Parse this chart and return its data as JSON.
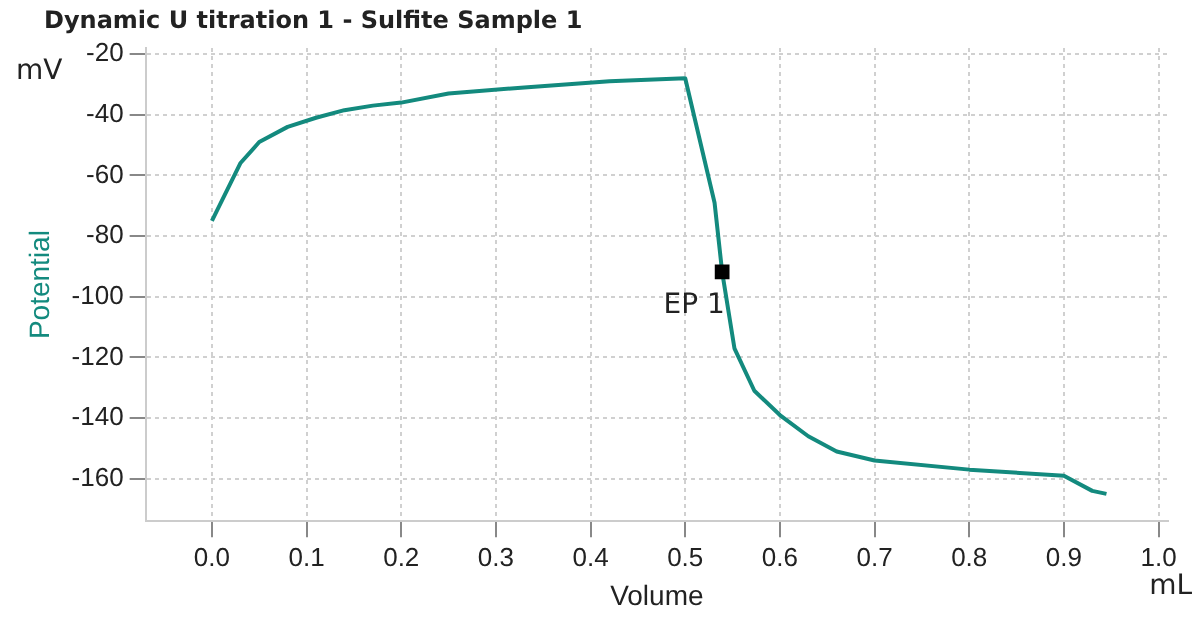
{
  "chart_data": {
    "type": "line",
    "title": "Dynamic U titration 1 - Sulfite Sample  1",
    "xlabel": "Volume",
    "ylabel": "Potential",
    "annotations": [
      "mV",
      "mL",
      {
        "text": "EP 1",
        "x": 0.539,
        "y": -91.8
      }
    ],
    "xlim": [
      -0.07,
      1.01
    ],
    "ylim": [
      -174,
      -18
    ],
    "xticks": [
      {
        "value": 0,
        "label": "0.0"
      },
      0.1,
      0.2,
      0.3,
      0.4,
      0.5,
      0.6,
      0.7,
      0.8,
      0.9,
      {
        "value": 1,
        "label": "1.0"
      }
    ],
    "yticks": [
      -20,
      -40,
      -60,
      -80,
      -100,
      -120,
      -140,
      -160
    ],
    "grid": true,
    "marker": "none",
    "series": [
      {
        "color": "#138a7e",
        "x": [
          0,
          0.03,
          0.05,
          0.08,
          0.11,
          0.14,
          0.17,
          0.2,
          0.25,
          0.33,
          0.42,
          0.5,
          0.531,
          0.539,
          0.552,
          0.573,
          0.6,
          0.63,
          0.66,
          0.7,
          0.8,
          0.9,
          0.93,
          0.945
        ],
        "values": [
          -75,
          -56,
          -49,
          -44,
          -41,
          -38.5,
          -37,
          -36,
          -33,
          -31,
          -29,
          -28,
          -69,
          -91.8,
          -117,
          -131,
          -139,
          -146,
          -151,
          -154,
          -157,
          -159,
          -164,
          -165
        ]
      },
      {
        "type": "scatter",
        "marker": "square",
        "color": "#000000",
        "x": [
          0.539
        ],
        "values": [
          -91.8
        ]
      }
    ]
  }
}
